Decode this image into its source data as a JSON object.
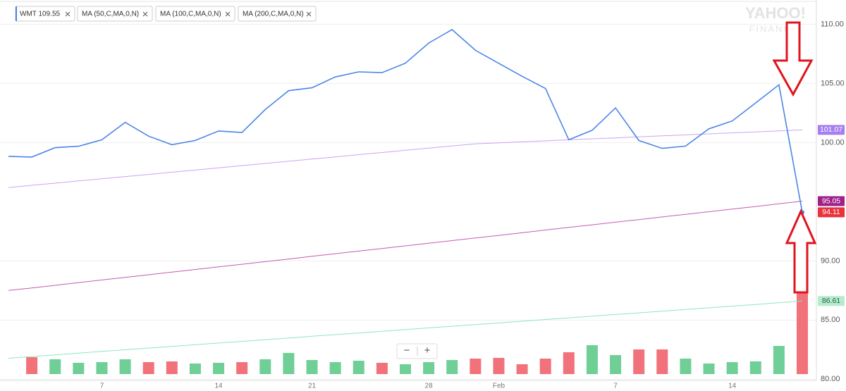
{
  "chart_data": {
    "type": "line",
    "categories": [
      null,
      null,
      null,
      null,
      "7",
      null,
      null,
      null,
      null,
      "14",
      null,
      null,
      null,
      "21",
      null,
      null,
      null,
      null,
      "28",
      null,
      null,
      "Feb",
      null,
      null,
      null,
      null,
      "7",
      null,
      null,
      null,
      null,
      "14",
      null,
      null,
      null
    ],
    "series": [
      {
        "name": "WMT 109.55",
        "color": "#4a86e8",
        "badge_color": "#e8323c",
        "values": [
          98.84,
          98.78,
          99.57,
          99.69,
          100.24,
          101.71,
          100.55,
          99.82,
          100.18,
          100.98,
          100.85,
          102.8,
          104.39,
          104.63,
          105.55,
          105.98,
          105.91,
          106.71,
          108.41,
          109.55,
          107.8,
          106.7,
          105.6,
          104.57,
          100.24,
          101.04,
          102.93,
          100.18,
          99.51,
          99.7,
          101.16,
          101.83,
          103.35,
          104.88,
          94.11
        ]
      },
      {
        "name": "MA (50,C,MA,0,N)",
        "color": "#c9a4f2",
        "badge_color": "#a67ef0",
        "values": [
          96.2,
          96.39,
          96.57,
          96.76,
          96.94,
          97.13,
          97.31,
          97.5,
          97.68,
          97.87,
          98.05,
          98.24,
          98.42,
          98.61,
          98.79,
          98.98,
          99.16,
          99.35,
          99.53,
          99.72,
          99.9,
          99.98,
          100.07,
          100.15,
          100.23,
          100.32,
          100.4,
          100.49,
          100.57,
          100.65,
          100.74,
          100.82,
          100.9,
          100.99,
          101.07
        ]
      },
      {
        "name": "MA (100,C,MA,0,N)",
        "color": "#c35bb3",
        "badge_color": "#a0208a",
        "values": [
          87.5,
          87.72,
          87.94,
          88.17,
          88.39,
          88.61,
          88.83,
          89.05,
          89.28,
          89.5,
          89.72,
          89.94,
          90.16,
          90.39,
          90.61,
          90.83,
          91.05,
          91.27,
          91.5,
          91.72,
          91.94,
          92.16,
          92.38,
          92.61,
          92.83,
          93.05,
          93.27,
          93.49,
          93.72,
          93.94,
          94.16,
          94.38,
          94.6,
          94.83,
          95.05
        ]
      },
      {
        "name": "MA (200,C,MA,0,N)",
        "color": "#8fe6bd",
        "badge_color": "#b4eccf",
        "values": [
          81.78,
          81.92,
          82.06,
          82.21,
          82.35,
          82.49,
          82.63,
          82.77,
          82.92,
          83.06,
          83.2,
          83.34,
          83.48,
          83.63,
          83.77,
          83.91,
          84.05,
          84.19,
          84.34,
          84.48,
          84.62,
          84.76,
          84.9,
          85.05,
          85.19,
          85.33,
          85.47,
          85.61,
          85.76,
          85.9,
          86.04,
          86.18,
          86.32,
          86.47,
          86.61
        ]
      }
    ],
    "volume": {
      "up_color": "#6fcf97",
      "down_color": "#f2727b",
      "values": [
        null,
        24,
        21,
        16,
        17,
        21,
        17,
        18,
        15,
        16,
        17,
        21,
        30,
        20,
        17,
        19,
        16,
        14,
        17,
        20,
        22,
        23,
        14,
        22,
        31,
        41,
        27,
        35,
        35,
        22,
        15,
        17,
        18,
        40,
        131
      ]
    },
    "ylim": [
      79.9,
      112.05
    ],
    "yticks": [
      {
        "value": 80,
        "label": "80.00"
      },
      {
        "value": 85,
        "label": "85.00"
      },
      {
        "value": 90,
        "label": "90.00"
      },
      {
        "value": 100,
        "label": "100.00"
      },
      {
        "value": 105,
        "label": "105.00"
      },
      {
        "value": 110,
        "label": "110.00"
      }
    ],
    "grid": true,
    "watermark": [
      "YAHOO!",
      "FINANCE"
    ],
    "zoom": [
      "−",
      "+"
    ]
  }
}
